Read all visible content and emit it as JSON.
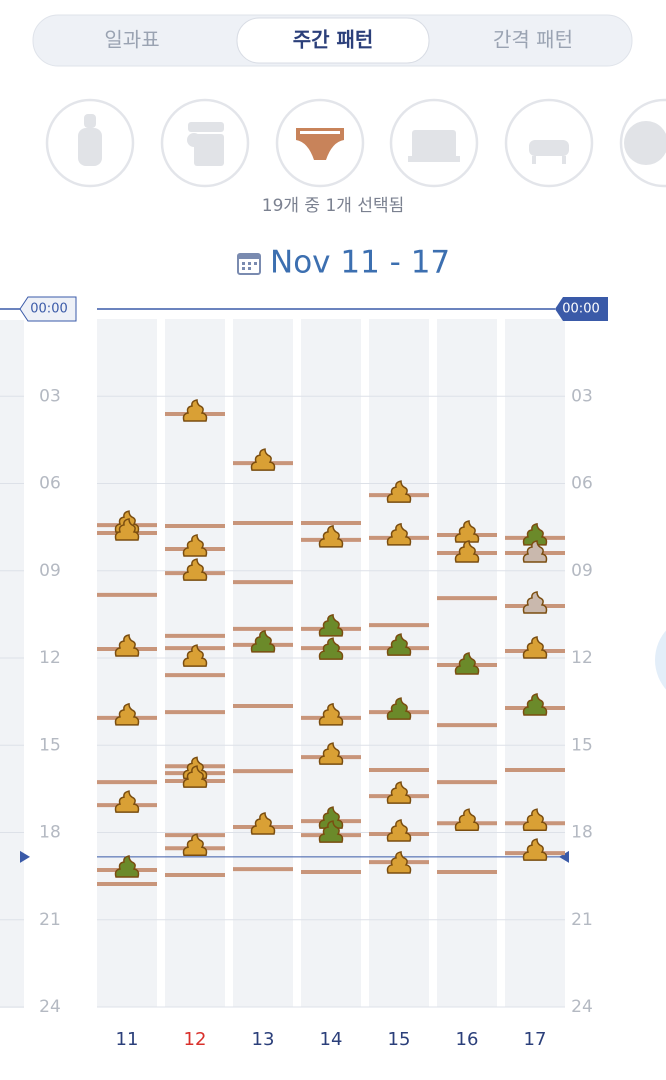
{
  "tabs": [
    "일과표",
    "주간 패턴",
    "간격 패턴"
  ],
  "selected_tab": 1,
  "selection_text": "19개 중 1개 선택됨",
  "chart_data": {
    "type": "timeline",
    "title": "Nov 11 - 17",
    "ylim": [
      0,
      24
    ],
    "yticks": [
      {
        "value": 0,
        "label": "00:00"
      },
      {
        "value": 3,
        "label": "03"
      },
      {
        "value": 6,
        "label": "06"
      },
      {
        "value": 9,
        "label": "09"
      },
      {
        "value": 12,
        "label": "12"
      },
      {
        "value": 15,
        "label": "15"
      },
      {
        "value": 18,
        "label": "18"
      },
      {
        "value": 21,
        "label": "21"
      },
      24
    ],
    "line_color": "#c8957a",
    "now": 18.84,
    "now_color": "#3a5aa8",
    "days": [
      {
        "label": "11",
        "label_color": "#2b3f7a",
        "changes": [
          7.43,
          7.7,
          9.83,
          11.69,
          14.06,
          16.27,
          17.06,
          19.29,
          19.77
        ],
        "poops": [
          {
            "value": 7.43,
            "color": "#d9a035"
          },
          {
            "value": 7.7,
            "color": "#d9a035"
          },
          {
            "value": 11.69,
            "color": "#d9a035"
          },
          {
            "value": 14.06,
            "color": "#d9a035"
          },
          {
            "value": 17.06,
            "color": "#d9a035"
          },
          {
            "value": 19.29,
            "color": "#6b8a2a"
          }
        ]
      },
      {
        "label": "12",
        "label_color": "#d9302b",
        "changes": [
          3.61,
          7.46,
          8.25,
          9.08,
          11.24,
          11.66,
          12.59,
          13.86,
          15.72,
          15.96,
          16.23,
          18.09,
          18.54,
          19.46
        ],
        "poops": [
          {
            "value": 3.61,
            "color": "#d9a035"
          },
          {
            "value": 8.25,
            "color": "#d9a035"
          },
          {
            "value": 9.08,
            "color": "#d9a035"
          },
          {
            "value": 12.04,
            "color": "#d9a035"
          },
          {
            "value": 15.9,
            "color": "#d9a035"
          },
          {
            "value": 16.2,
            "color": "#d9a035"
          },
          {
            "value": 18.54,
            "color": "#d9a035"
          }
        ]
      },
      {
        "label": "13",
        "label_color": "#2b3f7a",
        "changes": [
          5.3,
          7.36,
          9.39,
          11.0,
          11.55,
          13.65,
          15.89,
          17.81,
          19.26
        ],
        "poops": [
          {
            "value": 5.3,
            "color": "#d9a035"
          },
          {
            "value": 11.55,
            "color": "#6b8a2a"
          },
          {
            "value": 17.81,
            "color": "#d9a035"
          }
        ]
      },
      {
        "label": "14",
        "label_color": "#2b3f7a",
        "changes": [
          7.36,
          7.94,
          11.0,
          11.66,
          14.06,
          15.41,
          17.61,
          18.09,
          19.36
        ],
        "poops": [
          {
            "value": 7.94,
            "color": "#d9a035"
          },
          {
            "value": 11.0,
            "color": "#6b8a2a"
          },
          {
            "value": 11.8,
            "color": "#6b8a2a"
          },
          {
            "value": 14.06,
            "color": "#d9a035"
          },
          {
            "value": 15.41,
            "color": "#d9a035"
          },
          {
            "value": 17.61,
            "color": "#6b8a2a"
          },
          {
            "value": 18.09,
            "color": "#6b8a2a"
          }
        ]
      },
      {
        "label": "15",
        "label_color": "#2b3f7a",
        "changes": [
          6.4,
          7.87,
          10.87,
          11.66,
          13.86,
          15.85,
          16.75,
          18.05,
          19.02
        ],
        "poops": [
          {
            "value": 6.4,
            "color": "#d9a035"
          },
          {
            "value": 7.87,
            "color": "#d9a035"
          },
          {
            "value": 11.66,
            "color": "#6b8a2a"
          },
          {
            "value": 13.86,
            "color": "#6b8a2a"
          },
          {
            "value": 16.75,
            "color": "#d9a035"
          },
          {
            "value": 18.05,
            "color": "#d9a035"
          },
          {
            "value": 19.15,
            "color": "#d9a035"
          }
        ]
      },
      {
        "label": "16",
        "label_color": "#2b3f7a",
        "changes": [
          7.77,
          8.39,
          9.94,
          12.24,
          14.31,
          16.27,
          17.68,
          19.36
        ],
        "poops": [
          {
            "value": 7.77,
            "color": "#d9a035"
          },
          {
            "value": 8.46,
            "color": "#d9a035"
          },
          {
            "value": 12.31,
            "color": "#6b8a2a"
          },
          {
            "value": 17.68,
            "color": "#d9a035"
          }
        ]
      },
      {
        "label": "17",
        "label_color": "#2b3f7a",
        "changes": [
          7.87,
          8.39,
          10.21,
          11.76,
          13.72,
          15.85,
          17.68,
          18.71
        ],
        "poops": [
          {
            "value": 7.87,
            "color": "#6b8a2a"
          },
          {
            "value": 8.46,
            "color": "#c9b8ad"
          },
          {
            "value": 10.21,
            "color": "#c9b8ad"
          },
          {
            "value": 11.76,
            "color": "#d9a035"
          },
          {
            "value": 13.72,
            "color": "#6b8a2a"
          },
          {
            "value": 17.68,
            "color": "#d9a035"
          },
          {
            "value": 18.71,
            "color": "#d9a035"
          }
        ]
      }
    ]
  }
}
